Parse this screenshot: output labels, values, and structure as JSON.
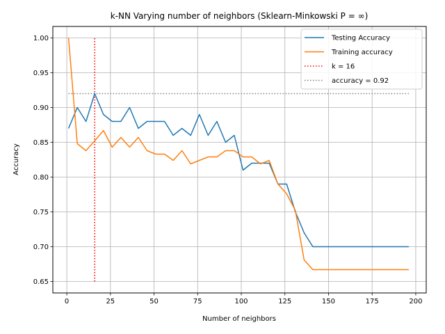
{
  "chart_data": {
    "type": "line",
    "title": "k-NN Varying number of neighbors (Sklearn-Minkowski P = ∞)",
    "xlabel": "Number of neighbors",
    "ylabel": "Accuracy",
    "xlim": [
      -8,
      206
    ],
    "ylim": [
      0.6335,
      1.0165
    ],
    "xticks": [
      0,
      25,
      50,
      75,
      100,
      125,
      150,
      175,
      200
    ],
    "yticks": [
      0.65,
      0.7,
      0.75,
      0.8,
      0.85,
      0.9,
      0.95,
      1.0
    ],
    "xtick_labels": [
      "0",
      "25",
      "50",
      "75",
      "100",
      "125",
      "150",
      "175",
      "200"
    ],
    "ytick_labels": [
      "0.65",
      "0.70",
      "0.75",
      "0.80",
      "0.85",
      "0.90",
      "0.95",
      "1.00"
    ],
    "grid": true,
    "legend_position": "top-right",
    "x": [
      1,
      6,
      11,
      16,
      21,
      26,
      31,
      36,
      41,
      46,
      51,
      56,
      61,
      66,
      71,
      76,
      81,
      86,
      91,
      96,
      101,
      106,
      111,
      116,
      121,
      126,
      131,
      136,
      141,
      146,
      151,
      156,
      161,
      166,
      171,
      176,
      181,
      186,
      191,
      196
    ],
    "series": [
      {
        "name": "Testing Accuracy",
        "color": "#1f77b4",
        "style": "solid",
        "values": [
          0.87,
          0.9,
          0.88,
          0.92,
          0.89,
          0.88,
          0.88,
          0.9,
          0.87,
          0.88,
          0.88,
          0.88,
          0.86,
          0.87,
          0.86,
          0.89,
          0.86,
          0.88,
          0.85,
          0.86,
          0.81,
          0.82,
          0.82,
          0.82,
          0.79,
          0.79,
          0.75,
          0.72,
          0.7,
          0.7,
          0.7,
          0.7,
          0.7,
          0.7,
          0.7,
          0.7,
          0.7,
          0.7,
          0.7,
          0.7
        ]
      },
      {
        "name": "Training accuracy",
        "color": "#ff7f0e",
        "style": "solid",
        "values": [
          1.0,
          0.848,
          0.838,
          0.852,
          0.867,
          0.843,
          0.857,
          0.843,
          0.857,
          0.838,
          0.833,
          0.833,
          0.824,
          0.838,
          0.819,
          0.824,
          0.829,
          0.829,
          0.838,
          0.838,
          0.829,
          0.829,
          0.819,
          0.824,
          0.79,
          0.776,
          0.752,
          0.681,
          0.667,
          0.667,
          0.667,
          0.667,
          0.667,
          0.667,
          0.667,
          0.667,
          0.667,
          0.667,
          0.667,
          0.667
        ]
      }
    ],
    "reference_lines": [
      {
        "name": "k = 16",
        "orientation": "vertical",
        "x": 16,
        "y_range": [
          0.65,
          1.0
        ],
        "color": "#ff0000",
        "style": "dotted"
      },
      {
        "name": "accuracy = 0.92",
        "orientation": "horizontal",
        "y": 0.92,
        "x_range": [
          1,
          196
        ],
        "color": "#808080",
        "style": "dotted"
      }
    ]
  }
}
